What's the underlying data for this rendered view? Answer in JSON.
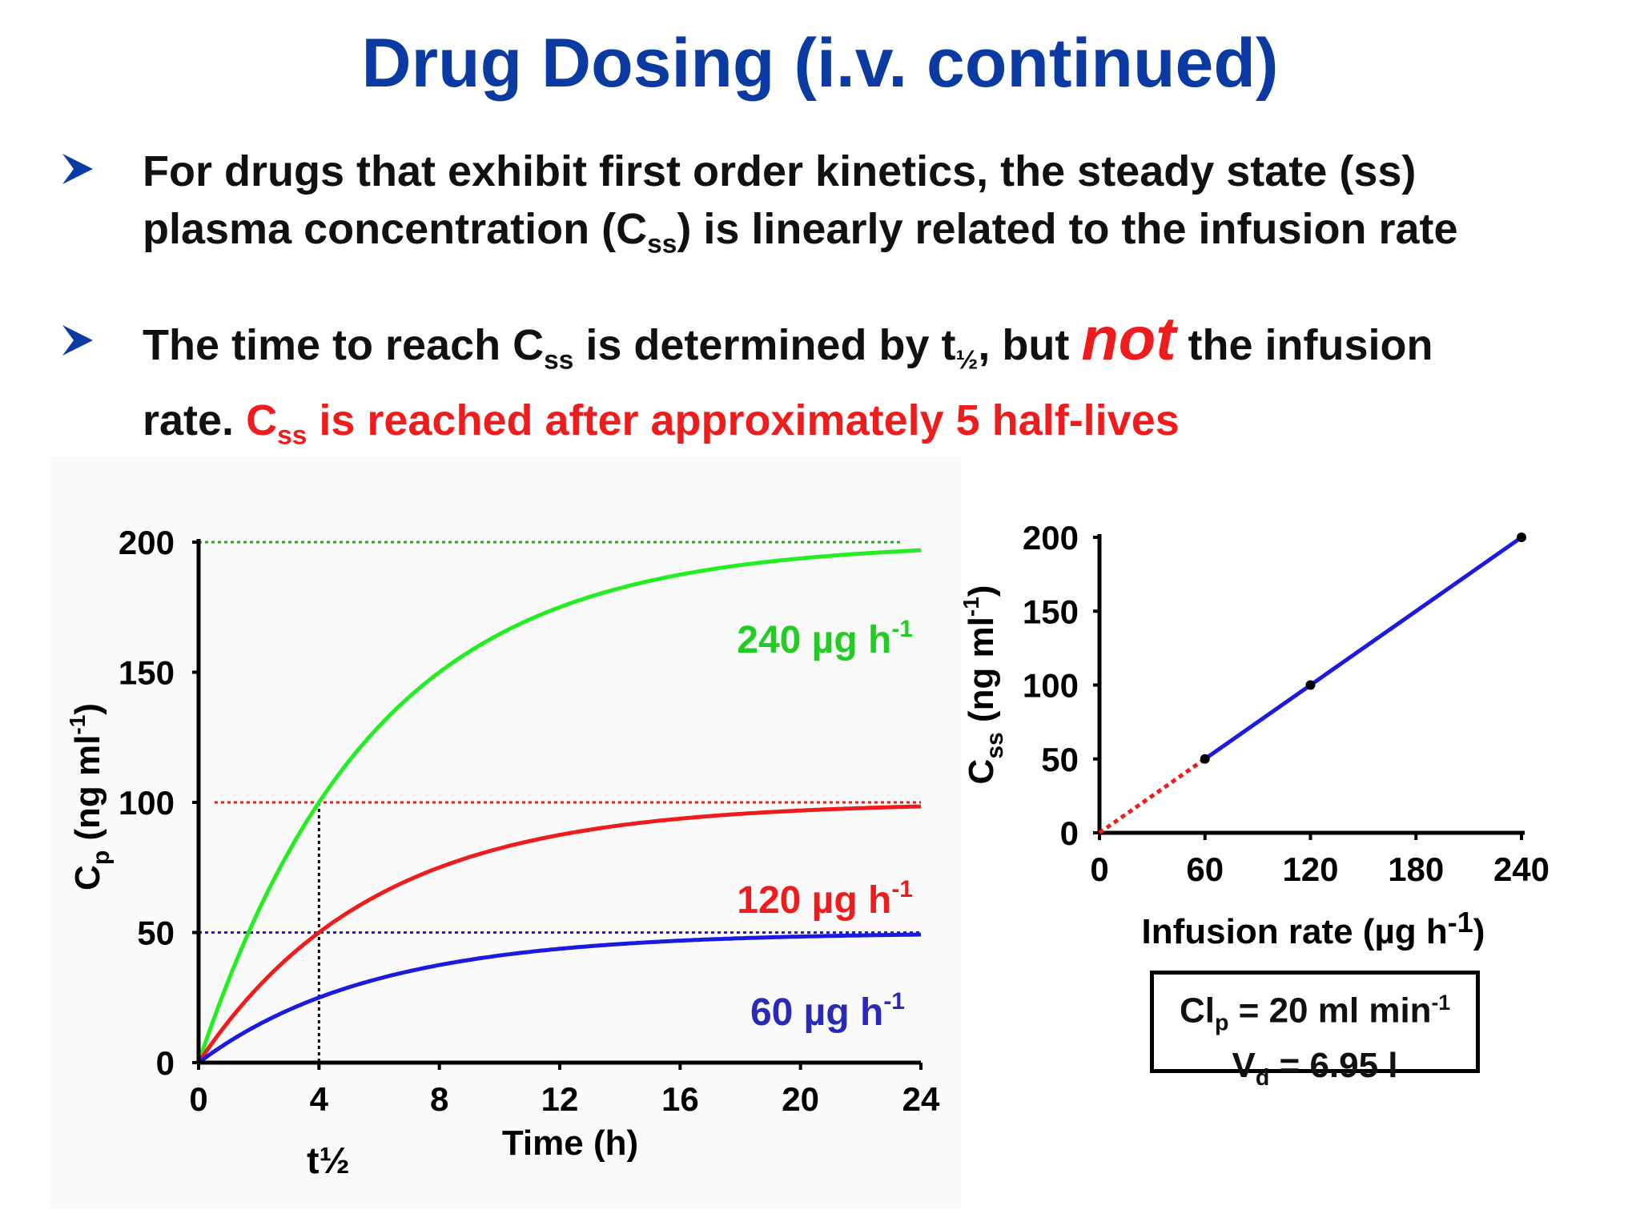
{
  "title": "Drug Dosing (i.v. continued)",
  "bullets": [
    {
      "line1": "For drugs that exhibit first order kinetics, the steady state (ss)",
      "line2_pre": "plasma concentration (C",
      "line2_sub": "ss",
      "line2_post": ") is linearly related to the infusion rate"
    },
    {
      "p1": "The time to reach C",
      "p1_sub": "ss",
      "p2": " is determined by t",
      "p2_sub": "½",
      "p3": ", but ",
      "not": "not",
      "p4": " the infusion",
      "line2_pre": "rate. ",
      "red_c": "C",
      "red_sub": "ss",
      "red_rest": " is reached after approximately 5 half-lives"
    }
  ],
  "colors": {
    "title": "#0a3aa2",
    "green": "#22ee22",
    "red": "#ee1c1c",
    "blue": "#1a1ae0",
    "dark_blue_label": "#2a2ab8",
    "axis": "#000000"
  },
  "chart_data": [
    {
      "type": "line",
      "xlabel": "Time (h)",
      "ylabel_main": "C",
      "ylabel_sub": "p",
      "ylabel_units": " (ng ml",
      "ylabel_sup": "-1",
      "ylabel_close": ")",
      "xlim": [
        0,
        24
      ],
      "ylim": [
        0,
        200
      ],
      "xticks": [
        0,
        4,
        8,
        12,
        16,
        20,
        24
      ],
      "yticks": [
        0,
        50,
        100,
        150,
        200
      ],
      "half_life_h": 4,
      "half_life_label": "t½",
      "grid": false,
      "series": [
        {
          "name": "240 µg h",
          "sup": "-1",
          "css": 200,
          "color": "#22ee22"
        },
        {
          "name": "120 µg h",
          "sup": "-1",
          "css": 100,
          "color": "#ee1c1c"
        },
        {
          "name": "60 µg h",
          "sup": "-1",
          "css": 50,
          "color": "#1a1ae0"
        }
      ],
      "reference_lines": [
        {
          "y": 200,
          "color": "#22aa22"
        },
        {
          "y": 100,
          "color": "#ee1c1c"
        },
        {
          "y": 50,
          "color": "#1a1ae0"
        }
      ]
    },
    {
      "type": "scatter",
      "xlabel": "Infusion rate (µg h",
      "xlabel_sup": "-1",
      "xlabel_close": ")",
      "ylabel_main": "C",
      "ylabel_sub": "ss",
      "ylabel_units": " (ng ml",
      "ylabel_sup": "-1",
      "ylabel_close": ")",
      "xlim": [
        0,
        240
      ],
      "ylim": [
        0,
        200
      ],
      "xticks": [
        0,
        60,
        120,
        180,
        240
      ],
      "yticks": [
        0,
        50,
        100,
        150,
        200
      ],
      "points": [
        {
          "x": 60,
          "y": 50
        },
        {
          "x": 120,
          "y": 100
        },
        {
          "x": 240,
          "y": 200
        }
      ],
      "fit_line": {
        "x": [
          60,
          240
        ],
        "y": [
          50,
          200
        ],
        "color": "#1a1ae0"
      },
      "extrapolation": {
        "x": [
          0,
          60
        ],
        "y": [
          0,
          50
        ],
        "color": "#ee1c1c"
      },
      "info_box": {
        "line1_pre": "Cl",
        "line1_sub": "p",
        "line1_post": " = 20 ml min",
        "line1_sup": "-1",
        "line2_pre": "V",
        "line2_sub": "d",
        "line2_post": " = 6.95 l"
      }
    }
  ]
}
